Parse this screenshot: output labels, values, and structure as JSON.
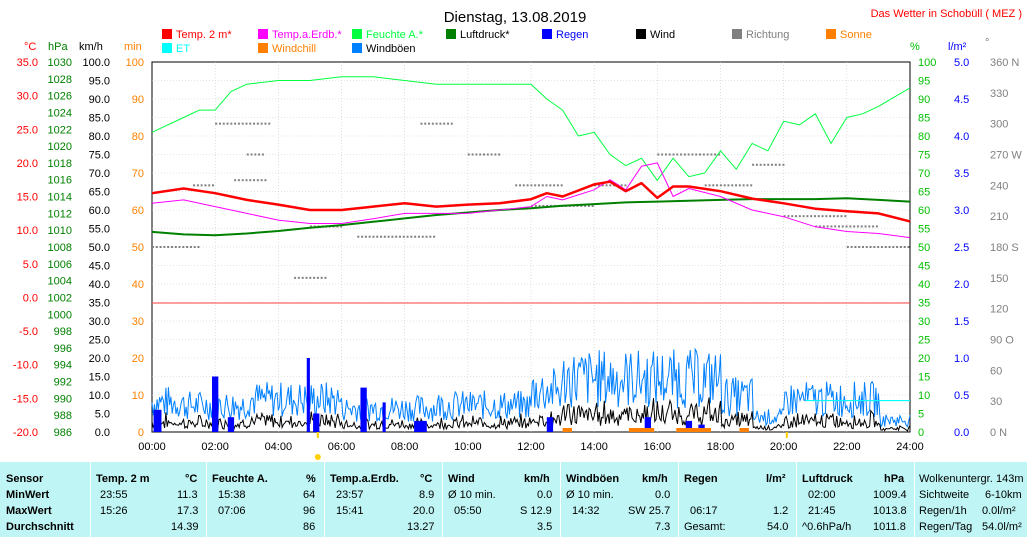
{
  "header": {
    "title": "Dienstag, 13.08.2019",
    "source": "Das Wetter in Schobüll ( MEZ )"
  },
  "legend": [
    {
      "label": "Temp. 2 m*",
      "color": "#ff0000"
    },
    {
      "label": "Temp.a.Erdb.*",
      "color": "#ff00ff"
    },
    {
      "label": "Feuchte A.*",
      "color": "#00ff40"
    },
    {
      "label": "Luftdruck*",
      "color": "#008000"
    },
    {
      "label": "Regen",
      "color": "#0000ff"
    },
    {
      "label": "Wind",
      "color": "#000000"
    },
    {
      "label": "Richtung",
      "color": "#808080"
    },
    {
      "label": "Sonne",
      "color": "#ff8000"
    },
    {
      "label": "ET",
      "color": "#00ffff"
    },
    {
      "label": "Windchill",
      "color": "#ff8000"
    },
    {
      "label": "Windböen",
      "color": "#0080ff"
    }
  ],
  "axis_units": {
    "celsius": "°C",
    "hpa": "hPa",
    "kmh": "km/h",
    "min": "min",
    "pct": "%",
    "lm2": "l/m²",
    "deg": "°"
  },
  "colors": {
    "celsius": "#ff0000",
    "hpa": "#008000",
    "kmh": "#000000",
    "min": "#ff8000",
    "pct": "#00c000",
    "lm2": "#0000ff",
    "deg": "#808080"
  },
  "chart_data": {
    "type": "line",
    "x_ticks": [
      "00:00",
      "02:00",
      "04:00",
      "06:00",
      "08:00",
      "10:00",
      "12:00",
      "14:00",
      "16:00",
      "18:00",
      "20:00",
      "22:00",
      "24:00"
    ],
    "ticks_celsius": [
      "35.0",
      "30.0",
      "25.0",
      "20.0",
      "15.0",
      "10.0",
      "5.0",
      "0.0",
      "-5.0",
      "-10.0",
      "-15.0",
      "-20.0"
    ],
    "ticks_hpa": [
      "1030",
      "1028",
      "1026",
      "1024",
      "1022",
      "1020",
      "1018",
      "1016",
      "1014",
      "1012",
      "1010",
      "1008",
      "1006",
      "1004",
      "1002",
      "1000",
      "998",
      "996",
      "994",
      "992",
      "990",
      "988",
      "986"
    ],
    "ticks_kmh": [
      "100.0",
      "95.0",
      "90.0",
      "85.0",
      "80.0",
      "75.0",
      "70.0",
      "65.0",
      "60.0",
      "55.0",
      "50.0",
      "45.0",
      "40.0",
      "35.0",
      "30.0",
      "25.0",
      "20.0",
      "15.0",
      "10.0",
      "5.0",
      "0.0"
    ],
    "ticks_min": [
      "100",
      "90",
      "80",
      "70",
      "60",
      "50",
      "40",
      "30",
      "20",
      "10",
      "0"
    ],
    "ticks_pct": [
      "100",
      "95",
      "90",
      "85",
      "80",
      "75",
      "70",
      "65",
      "60",
      "55",
      "50",
      "45",
      "40",
      "35",
      "30",
      "25",
      "20",
      "15",
      "10",
      "5",
      "0"
    ],
    "ticks_lm2": [
      "5.0",
      "4.5",
      "4.0",
      "3.5",
      "3.0",
      "2.5",
      "2.0",
      "1.5",
      "1.0",
      "0.5",
      "0.0"
    ],
    "ticks_deg": [
      "360 N",
      "330",
      "300",
      "270 W",
      "240",
      "210",
      "180 S",
      "150",
      "120",
      "90 O",
      "60",
      "30",
      "0 N"
    ],
    "ylim_kmh": [
      0,
      100
    ],
    "series": [
      {
        "name": "Temp. 2 m*",
        "unit": "°C",
        "x": [
          0,
          1,
          2,
          3,
          4,
          5,
          6,
          7,
          8,
          9,
          10,
          11,
          12,
          12.5,
          13,
          14,
          14.5,
          15,
          15.5,
          16,
          16.5,
          17,
          18,
          19,
          20,
          21,
          22,
          23,
          24
        ],
        "y": [
          15.5,
          16.2,
          15.5,
          14.5,
          13.8,
          13.0,
          13.0,
          13.5,
          14.0,
          13.5,
          13.8,
          14.0,
          14.6,
          15.5,
          15.0,
          16.8,
          17.2,
          15.8,
          17.0,
          14.8,
          16.5,
          16.5,
          15.8,
          14.7,
          14.0,
          13.2,
          12.8,
          12.5,
          11.3
        ]
      },
      {
        "name": "Temp.a.Erdb.*",
        "unit": "°C",
        "x": [
          0,
          1,
          2,
          3,
          4,
          5,
          6,
          7,
          8,
          9,
          10,
          11,
          12,
          12.5,
          13,
          14,
          14.5,
          15,
          15.5,
          16,
          16.5,
          17,
          18,
          19,
          20,
          21,
          22,
          23,
          24
        ],
        "y": [
          14.0,
          14.5,
          13.5,
          12.5,
          11.5,
          11.0,
          11.0,
          11.7,
          12.5,
          12.5,
          12.5,
          13.0,
          13.5,
          15.0,
          14.5,
          16.0,
          17.5,
          16.0,
          19.5,
          20.0,
          15.0,
          16.2,
          15.0,
          13.0,
          12.0,
          10.5,
          9.8,
          9.5,
          8.9
        ]
      },
      {
        "name": "Feuchte A.*",
        "unit": "%",
        "x": [
          0,
          1,
          1.5,
          2,
          2.5,
          3,
          4,
          5,
          6,
          7,
          8,
          9,
          10,
          11,
          12,
          12.5,
          13,
          13.5,
          14,
          14.5,
          15,
          15.5,
          16,
          16.5,
          17,
          17.5,
          18,
          18.5,
          19,
          19.5,
          20,
          20.5,
          21,
          21.5,
          22,
          22.5,
          23,
          24
        ],
        "y": [
          81,
          85,
          87,
          87,
          92,
          94,
          95,
          95,
          96,
          96,
          95,
          94,
          94,
          94,
          94,
          90,
          87,
          80,
          81,
          75,
          72,
          74,
          68,
          74,
          69,
          70,
          76,
          71,
          78,
          76,
          84,
          83,
          86,
          78,
          85,
          86,
          88,
          93
        ]
      },
      {
        "name": "Luftdruck*",
        "unit": "hPa",
        "x": [
          0,
          1,
          2,
          3,
          4,
          5,
          6,
          7,
          8,
          9,
          10,
          11,
          12,
          13,
          14,
          15,
          16,
          17,
          18,
          19,
          20,
          21,
          22,
          23,
          24
        ],
        "y": [
          1009.8,
          1009.5,
          1009.4,
          1009.6,
          1009.9,
          1010.3,
          1010.6,
          1011.0,
          1011.4,
          1011.8,
          1012.1,
          1012.4,
          1012.6,
          1012.9,
          1013.1,
          1013.3,
          1013.4,
          1013.5,
          1013.6,
          1013.7,
          1013.7,
          1013.7,
          1013.8,
          1013.6,
          1013.4
        ]
      }
    ]
  },
  "table": {
    "row_labels": [
      "Sensor",
      "MinWert",
      "MaxWert",
      "Durchschnitt"
    ],
    "temp2m": {
      "head": "Temp.  2 m",
      "unit": "°C",
      "min_time": "23:55",
      "min": "11.3",
      "max_time": "15:26",
      "max": "17.3",
      "avg": "14.39"
    },
    "feuchte": {
      "head": "Feuchte A.",
      "unit": "%",
      "min_time": "15:38",
      "min": "64",
      "max_time": "07:06",
      "max": "96",
      "avg": "86"
    },
    "erdb": {
      "head": "Temp.a.Erdb.",
      "unit": "°C",
      "min_time": "23:57",
      "min": "8.9",
      "max_time": "15:41",
      "max": "20.0",
      "avg": "13.27"
    },
    "wind": {
      "head": "Wind",
      "unit": "km/h",
      "min_label": "Ø 10 min.",
      "min": "0.0",
      "max_time": "05:50",
      "max": "S 12.9",
      "avg": "3.5"
    },
    "boeen": {
      "head": "Windböen",
      "unit": "km/h",
      "min_label": "Ø 10 min.",
      "min": "0.0",
      "max_time": "14:32",
      "max": "SW 25.7",
      "avg": "7.3"
    },
    "regen": {
      "head": "Regen",
      "unit": "l/m²",
      "max_time": "06:17",
      "max": "1.2",
      "total_label": "Gesamt:",
      "total": "54.0"
    },
    "druck": {
      "head": "Luftdruck",
      "unit": "hPa",
      "min_time": "02:00",
      "min": "1009.4",
      "max_time": "21:45",
      "max": "1013.8",
      "avg_label": "^0.6hPa/h",
      "avg": "1011.8"
    },
    "extra": {
      "l1": "Wolkenuntergr.",
      "v1": "143m",
      "l2": "Sichtweite",
      "v2": "6-10km",
      "l3": "Regen/1h",
      "v3": "0.0l/m²",
      "l4": "Regen/Tag",
      "v4": "54.0l/m²"
    }
  }
}
